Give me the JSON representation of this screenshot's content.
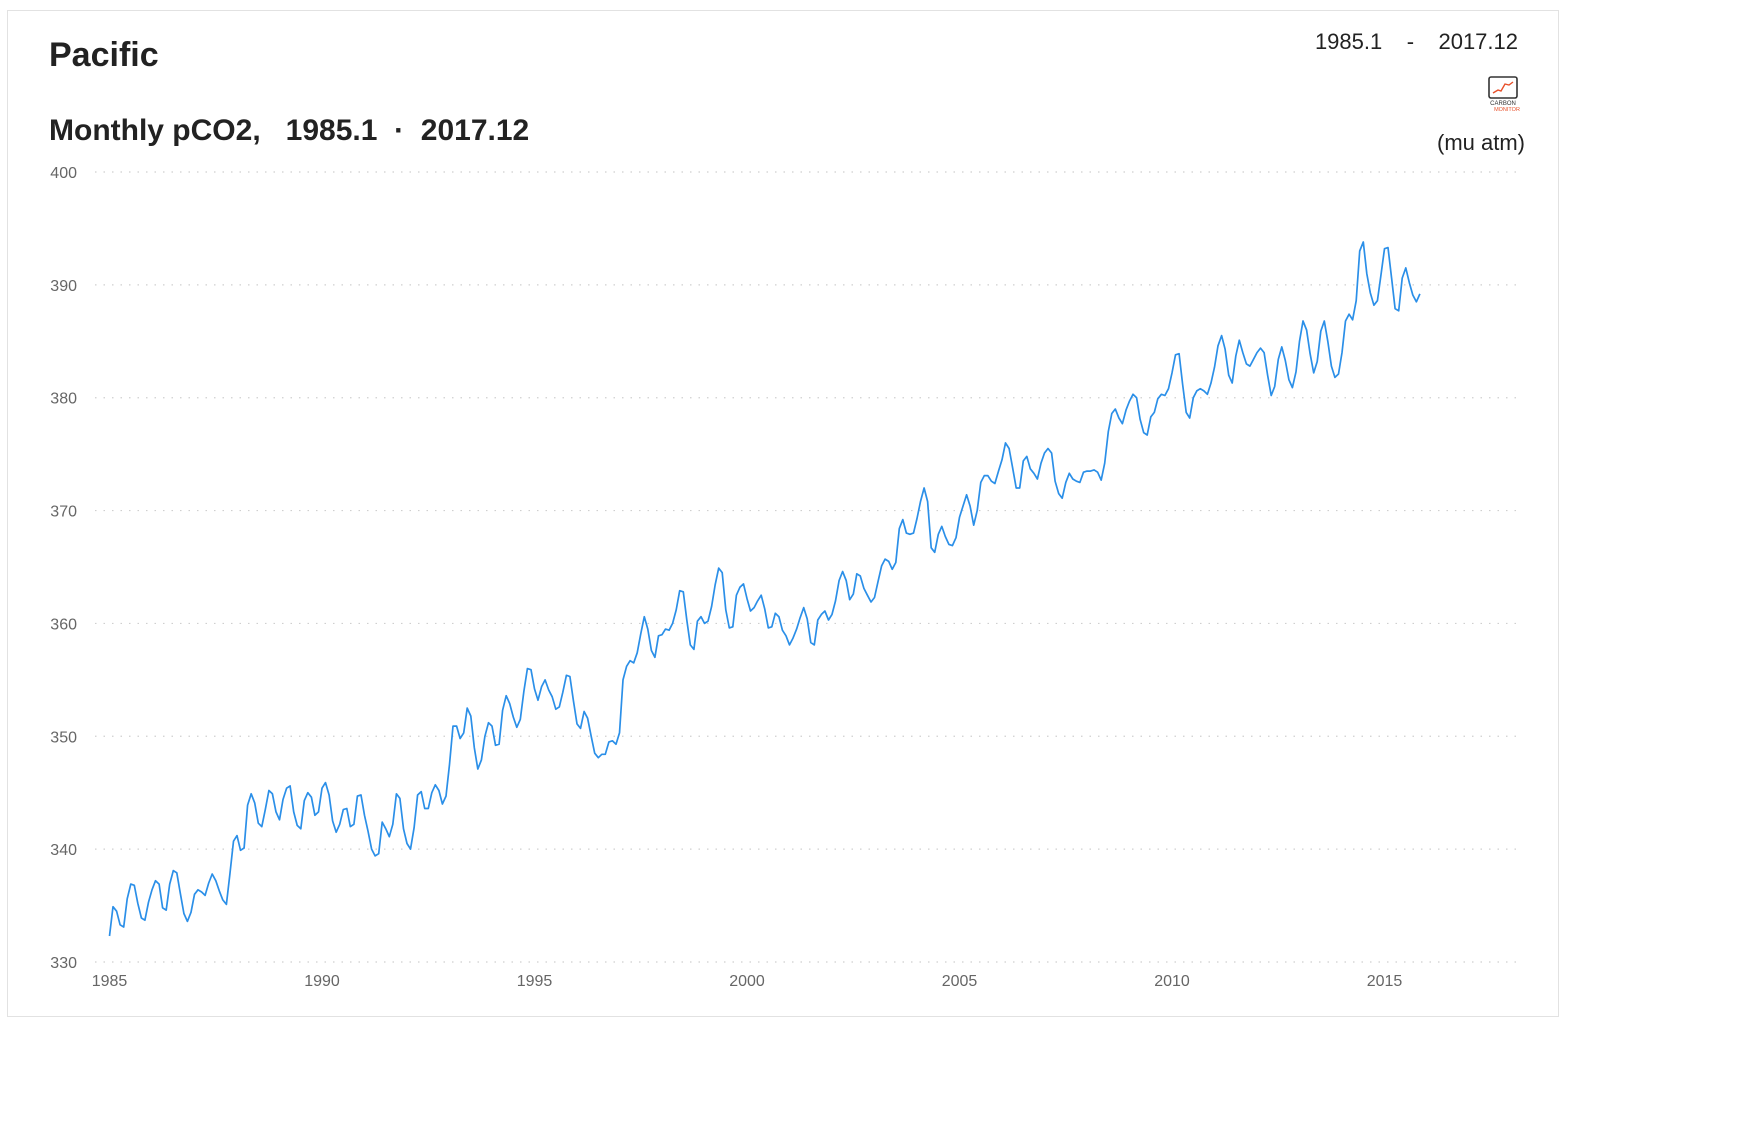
{
  "region_title": "Pacific",
  "subtitle": {
    "prefix": "Monthly pCO2,",
    "start": "1985.1",
    "sep": "·",
    "end": "2017.12"
  },
  "range": {
    "start": "1985.1",
    "sep": "-",
    "end": "2017.12"
  },
  "logo": {
    "icon": "carbon-monitor-logo",
    "text_top": "CARBON",
    "text_bottom": "MONITOR"
  },
  "unit_label": "(mu atm)",
  "colors": {
    "line": "#2b8fe8",
    "grid": "#cfcfcf",
    "tick": "#666666",
    "logo_accent": "#e8502a"
  },
  "chart_data": {
    "type": "line",
    "title": "Monthly pCO2,",
    "ylabel": "(mu atm)",
    "ylim": [
      330,
      400
    ],
    "xlim": [
      1985,
      2018.25
    ],
    "yticks": [
      330,
      340,
      350,
      360,
      370,
      380,
      390,
      400
    ],
    "xticks": [
      1985,
      1990,
      1995,
      2000,
      2005,
      2010,
      2015
    ],
    "grid": "horizontal dotted",
    "legend": "none",
    "x_start": "1985.1",
    "x_end": "2017.12",
    "values": [
      332.3,
      334.9,
      334.5,
      333.3,
      333.1,
      335.6,
      336.9,
      336.8,
      335.2,
      333.9,
      333.7,
      335.3,
      336.4,
      337.2,
      336.9,
      334.8,
      334.6,
      336.9,
      338.1,
      337.9,
      336.1,
      334.3,
      333.6,
      334.4,
      336.0,
      336.4,
      336.2,
      335.9,
      337.0,
      337.8,
      337.2,
      336.3,
      335.5,
      335.1,
      337.8,
      340.7,
      341.2,
      339.9,
      340.1,
      343.9,
      344.9,
      344.1,
      342.3,
      342.0,
      343.5,
      345.2,
      344.9,
      343.3,
      342.6,
      344.4,
      345.4,
      345.6,
      343.3,
      342.1,
      341.8,
      344.3,
      345.0,
      344.6,
      343.0,
      343.3,
      345.4,
      345.9,
      344.8,
      342.5,
      341.5,
      342.2,
      343.5,
      343.6,
      342.0,
      342.2,
      344.7,
      344.8,
      343.0,
      341.6,
      340.0,
      339.4,
      339.6,
      342.4,
      341.8,
      341.1,
      342.2,
      344.9,
      344.5,
      341.8,
      340.5,
      340.0,
      341.9,
      344.8,
      345.1,
      343.6,
      343.6,
      345.0,
      345.7,
      345.2,
      344.0,
      344.7,
      347.5,
      350.9,
      350.9,
      349.8,
      350.3,
      352.5,
      351.8,
      349.0,
      347.1,
      347.9,
      350.0,
      351.2,
      350.9,
      349.2,
      349.3,
      352.3,
      353.6,
      352.9,
      351.7,
      350.8,
      351.5,
      354.0,
      356.0,
      355.9,
      354.2,
      353.2,
      354.4,
      355.0,
      354.1,
      353.5,
      352.4,
      352.6,
      353.9,
      355.4,
      355.3,
      353.1,
      351.1,
      350.7,
      352.2,
      351.6,
      350.0,
      348.5,
      348.1,
      348.4,
      348.4,
      349.5,
      349.6,
      349.3,
      350.3,
      355.0,
      356.2,
      356.7,
      356.5,
      357.4,
      359.1,
      360.6,
      359.5,
      357.6,
      357.0,
      358.9,
      359.0,
      359.5,
      359.4,
      360.0,
      361.2,
      362.9,
      362.8,
      360.3,
      358.1,
      357.7,
      360.2,
      360.6,
      360.0,
      360.2,
      361.5,
      363.4,
      364.9,
      364.5,
      361.2,
      359.6,
      359.7,
      362.5,
      363.2,
      363.5,
      362.2,
      361.1,
      361.4,
      362.0,
      362.5,
      361.3,
      359.6,
      359.7,
      360.9,
      360.6,
      359.4,
      358.9,
      358.1,
      358.7,
      359.5,
      360.5,
      361.4,
      360.4,
      358.3,
      358.1,
      360.3,
      360.8,
      361.1,
      360.3,
      360.8,
      362.0,
      363.8,
      364.6,
      363.8,
      362.1,
      362.6,
      364.4,
      364.2,
      363.1,
      362.5,
      361.9,
      362.3,
      363.7,
      365.1,
      365.7,
      365.5,
      364.8,
      365.4,
      368.4,
      369.2,
      368.0,
      367.9,
      368.0,
      369.3,
      370.8,
      372.0,
      370.8,
      366.7,
      366.3,
      367.9,
      368.6,
      367.7,
      367.0,
      366.9,
      367.6,
      369.4,
      370.4,
      371.4,
      370.4,
      368.7,
      370.0,
      372.5,
      373.1,
      373.1,
      372.6,
      372.4,
      373.5,
      374.5,
      376.0,
      375.5,
      373.8,
      372.0,
      372.0,
      374.4,
      374.8,
      373.7,
      373.3,
      372.8,
      374.2,
      375.1,
      375.5,
      375.1,
      372.6,
      371.5,
      371.1,
      372.5,
      373.3,
      372.8,
      372.6,
      372.5,
      373.4,
      373.5,
      373.5,
      373.6,
      373.4,
      372.7,
      374.2,
      377.0,
      378.6,
      379.0,
      378.2,
      377.7,
      378.9,
      379.7,
      380.3,
      380.0,
      378.1,
      376.9,
      376.7,
      378.3,
      378.7,
      379.9,
      380.3,
      380.2,
      380.8,
      382.2,
      383.8,
      383.9,
      381.2,
      378.7,
      378.2,
      380.0,
      380.6,
      380.8,
      380.6,
      380.3,
      381.3,
      382.7,
      384.6,
      385.5,
      384.3,
      382.0,
      381.3,
      383.7,
      385.1,
      384.0,
      383.0,
      382.8,
      383.4,
      384.0,
      384.4,
      384.0,
      382.0,
      380.2,
      381.0,
      383.4,
      384.5,
      383.3,
      381.6,
      380.9,
      382.3,
      385.0,
      386.8,
      386.0,
      383.9,
      382.2,
      383.2,
      385.9,
      386.8,
      385.0,
      382.8,
      381.8,
      382.1,
      384.0,
      386.8,
      387.4,
      386.9,
      388.6,
      393.0,
      393.8,
      391.0,
      389.3,
      388.2,
      388.6,
      390.9,
      393.2,
      393.3,
      390.6,
      387.9,
      387.7,
      390.6,
      391.5,
      390.2,
      389.1,
      388.5,
      389.2
    ]
  }
}
